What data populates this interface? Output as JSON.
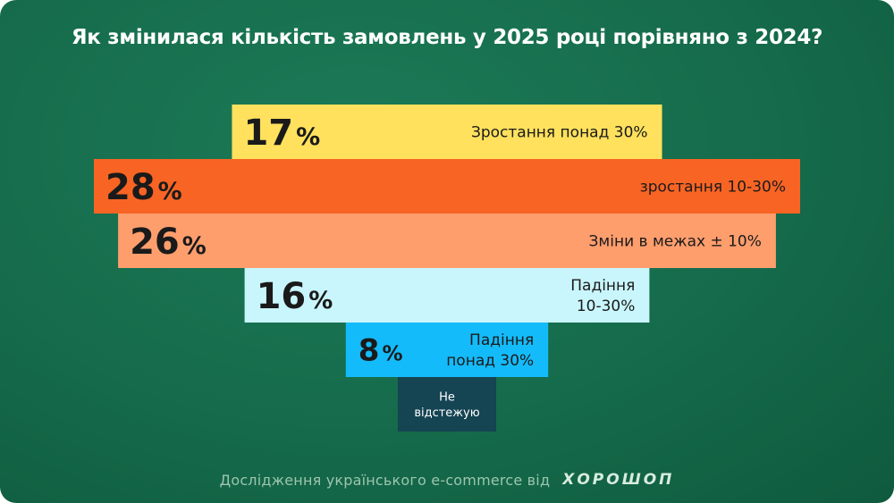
{
  "title": "Як змінилася кількість замовлень у 2025 році порівняно з 2024?",
  "chart_data": {
    "type": "bar",
    "orientation": "horizontal-centered",
    "unit": "%",
    "categories": [
      "Зростання понад 30%",
      "зростання 10-30%",
      "Зміни в межах ± 10%",
      "Падіння 10-30%",
      "Падіння понад 30%",
      "Не відстежую"
    ],
    "label_lines": [
      [
        "Зростання понад 30%"
      ],
      [
        "зростання 10-30%"
      ],
      [
        "Зміни в межах ± 10%"
      ],
      [
        "Падіння",
        "10-30%"
      ],
      [
        "Падіння",
        "понад 30%"
      ],
      [
        "Не",
        "відстежую"
      ]
    ],
    "values": [
      17,
      28,
      26,
      16,
      8,
      null
    ],
    "value_labels": [
      "17",
      "28",
      "26",
      "16",
      "8",
      ""
    ],
    "colors": [
      "#ffe15d",
      "#f86424",
      "#ff9e6d",
      "#c9f6fc",
      "#14bbfa",
      "#154453"
    ],
    "label_colors": [
      "#1a1a1a",
      "#1a1a1a",
      "#1a1a1a",
      "#1a1a1a",
      "#1a1a1a",
      "#ffffff"
    ]
  },
  "footer": {
    "text": "Дослідження українського e-commerce від",
    "brand": "ХОРОШОП"
  }
}
